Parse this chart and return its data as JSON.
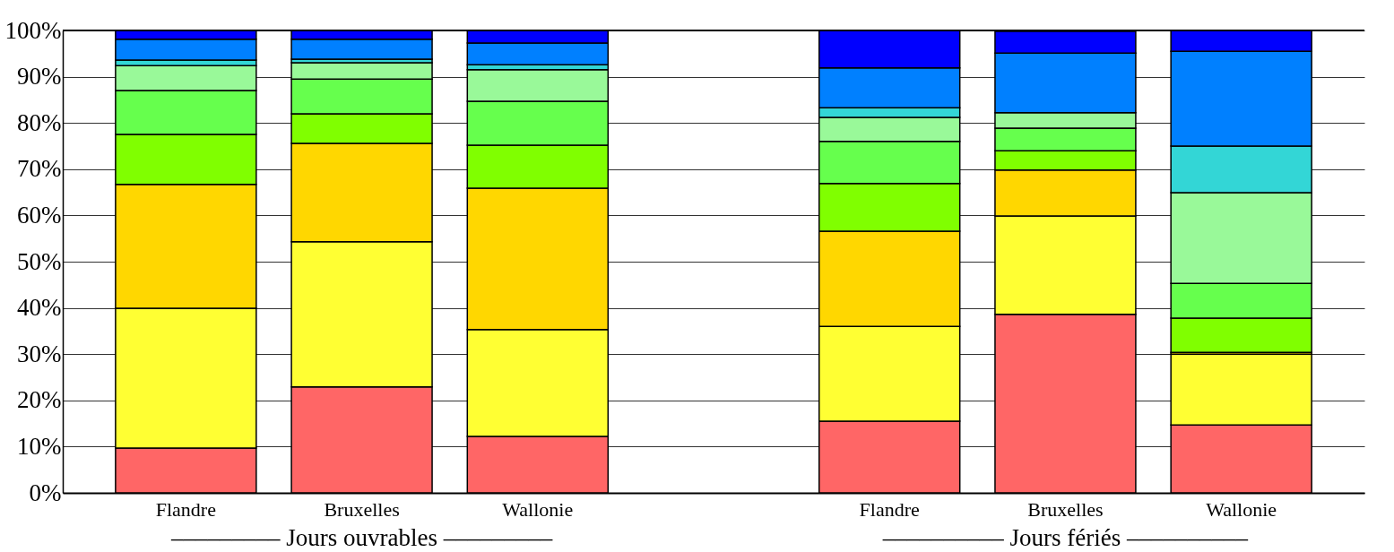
{
  "chart_data": {
    "type": "bar",
    "stacked": true,
    "categories": [
      "Flandre",
      "Bruxelles",
      "Wallonie",
      null,
      "Flandre",
      "Bruxelles",
      "Wallonie"
    ],
    "series": [
      {
        "color": "#ff6666",
        "values": [
          9.7,
          22.9,
          12.2,
          null,
          15.5,
          38.6,
          14.7
        ]
      },
      {
        "color": "#ffff33",
        "values": [
          30.2,
          31.4,
          23.1,
          null,
          20.5,
          21.3,
          15.3
        ]
      },
      {
        "color": "#ffd700",
        "values": [
          26.8,
          21.3,
          30.6,
          null,
          20.6,
          9.9,
          0.4
        ]
      },
      {
        "color": "#80ff00",
        "values": [
          10.8,
          6.4,
          9.3,
          null,
          10.3,
          4.2,
          7.4
        ]
      },
      {
        "color": "#66ff4d",
        "values": [
          9.5,
          7.5,
          9.5,
          null,
          9.1,
          4.9,
          7.5
        ]
      },
      {
        "color": "#99f999",
        "values": [
          5.4,
          3.5,
          6.8,
          null,
          5.2,
          3.3,
          19.6
        ]
      },
      {
        "color": "#33d6d6",
        "values": [
          1.2,
          0.8,
          1.1,
          null,
          2.1,
          null,
          10.1
        ]
      },
      {
        "color": "#0080ff",
        "values": [
          4.5,
          4.3,
          4.7,
          null,
          8.6,
          12.9,
          20.5
        ]
      },
      {
        "color": "#0000ff",
        "values": [
          1.9,
          1.9,
          2.7,
          null,
          8.1,
          4.7,
          4.5
        ]
      }
    ],
    "ylim": [
      0,
      100
    ],
    "yticks": [
      {
        "value": 0,
        "label": "0%"
      },
      {
        "value": 10,
        "label": "10%"
      },
      {
        "value": 20,
        "label": "20%"
      },
      {
        "value": 30,
        "label": "30%"
      },
      {
        "value": 40,
        "label": "40%"
      },
      {
        "value": 50,
        "label": "50%"
      },
      {
        "value": 60,
        "label": "60%"
      },
      {
        "value": 70,
        "label": "70%"
      },
      {
        "value": 80,
        "label": "80%"
      },
      {
        "value": 90,
        "label": "90%"
      },
      {
        "value": 100,
        "label": "100%"
      }
    ],
    "grid": "y",
    "annotations": [
      "––––––––– Jours ouvrables –––––––––",
      "–––––––––– Jours fériés ––––––––––"
    ]
  }
}
